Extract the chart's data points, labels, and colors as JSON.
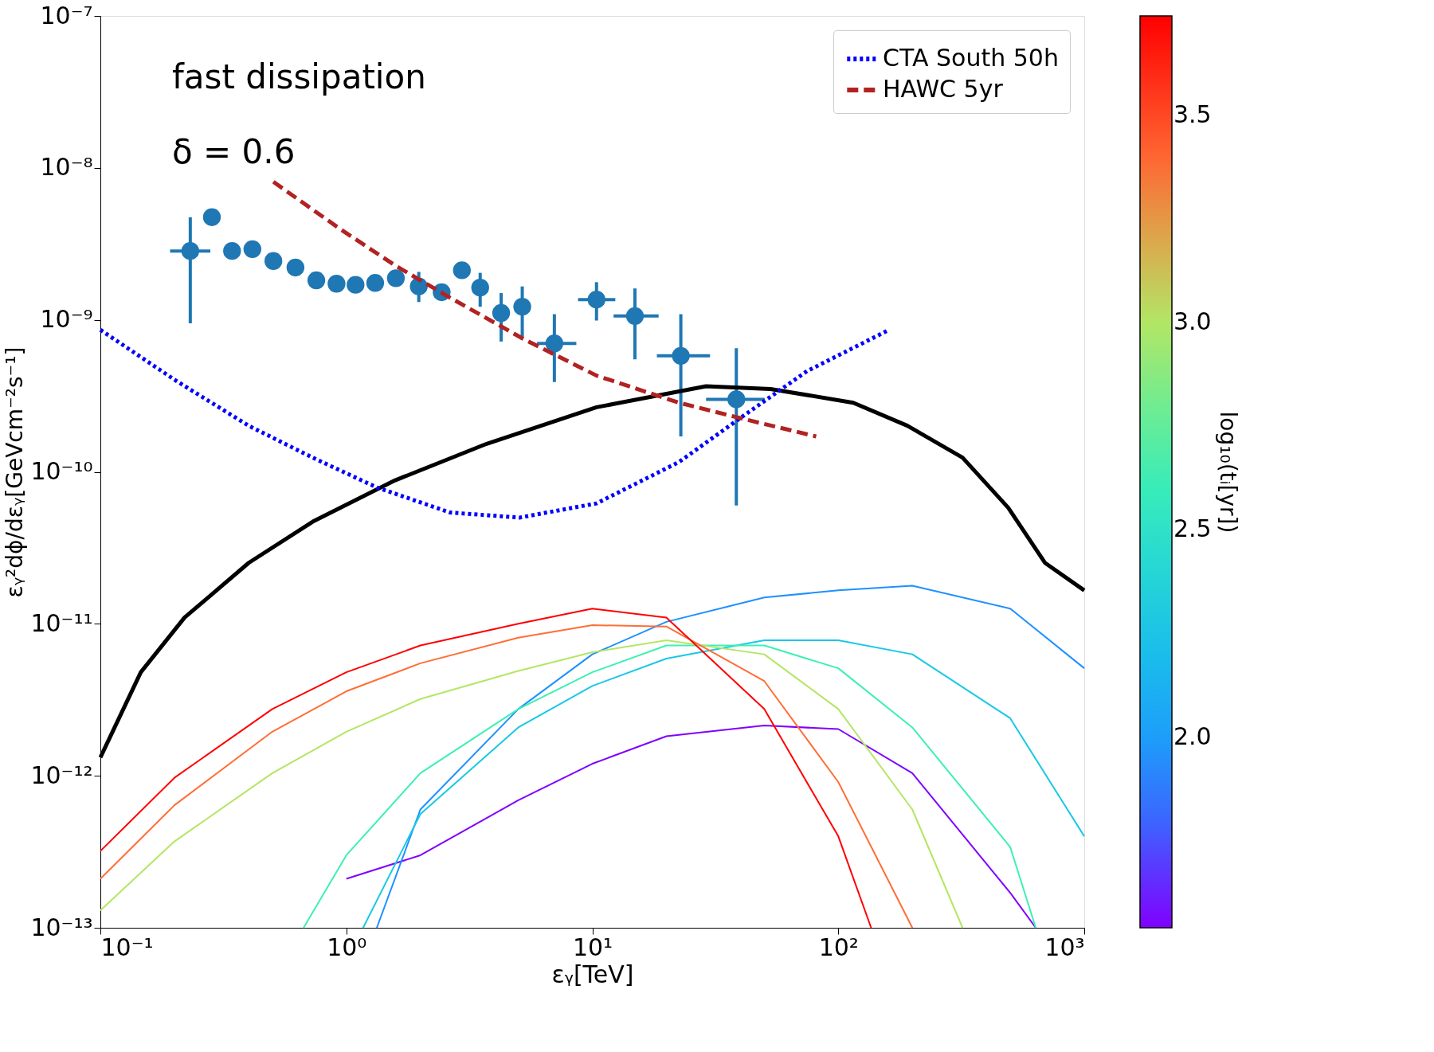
{
  "chart_data": {
    "type": "line",
    "xlabel": "εᵧ[TeV]",
    "ylabel": "εᵧ²dϕ/dεᵧ[GeVcm⁻²s⁻¹]",
    "clabel": "log₁₀(tᵢ[yr])",
    "log": "xy",
    "legend": "top right",
    "grid": false,
    "xlim": [
      0.1,
      1000
    ],
    "ylim": [
      1e-13,
      1e-07
    ],
    "xticks": [
      {
        "value": 0.1,
        "label": "10⁻¹"
      },
      {
        "value": 1,
        "label": "10⁰"
      },
      {
        "value": 10,
        "label": "10¹"
      },
      {
        "value": 100,
        "label": "10²"
      },
      {
        "value": 1000,
        "label": "10³"
      }
    ],
    "yticks": [
      {
        "value": 1e-13,
        "label": "10⁻¹³"
      },
      {
        "value": 1e-12,
        "label": "10⁻¹²"
      },
      {
        "value": 1e-11,
        "label": "10⁻¹¹"
      },
      {
        "value": 1e-10,
        "label": "10⁻¹⁰"
      },
      {
        "value": 1e-09,
        "label": "10⁻⁹"
      },
      {
        "value": 1e-08,
        "label": "10⁻⁸"
      },
      {
        "value": 1e-07,
        "label": "10⁻⁷"
      }
    ],
    "clim": [
      1.54,
      3.74
    ],
    "cticks": [
      {
        "value": 2,
        "label": "2.0"
      },
      {
        "value": 2.5,
        "label": "2.5"
      },
      {
        "value": 3,
        "label": "3.0"
      },
      {
        "value": 3.5,
        "label": "3.5"
      }
    ],
    "annotations": [
      "fast dissipation",
      "δ = 0.6"
    ],
    "series": [
      {
        "type": "scatter",
        "marker": "circle",
        "color": "#1f77b4",
        "x": [
          0.232,
          0.284,
          0.343,
          0.415,
          0.505,
          0.621,
          0.755,
          0.912,
          1.09,
          1.31,
          1.59,
          1.97,
          2.44,
          2.95,
          3.5,
          4.26,
          5.19,
          7.01,
          10.4,
          14.9,
          22.9,
          38.5
        ],
        "values": [
          2.84e-09,
          4.74e-09,
          2.84e-09,
          2.92e-09,
          2.44e-09,
          2.21e-09,
          1.82e-09,
          1.73e-09,
          1.7e-09,
          1.75e-09,
          1.88e-09,
          1.66e-09,
          1.52e-09,
          2.12e-09,
          1.63e-09,
          1.11e-09,
          1.22e-09,
          7e-10,
          1.36e-09,
          1.06e-09,
          5.8e-10,
          3e-10
        ],
        "errors": [
          [
            9.5e-10,
            4.74e-09
          ],
          null,
          null,
          null,
          null,
          null,
          null,
          null,
          null,
          null,
          null,
          [
            1.31e-09,
            2.07e-09
          ],
          null,
          null,
          [
            1.22e-09,
            2.04e-09
          ],
          [
            7.2e-10,
            1.5e-09
          ],
          [
            7.7e-10,
            1.66e-09
          ],
          [
            3.9e-10,
            1.09e-09
          ],
          [
            9.9e-10,
            1.77e-09
          ],
          [
            5.5e-10,
            1.61e-09
          ],
          [
            1.71e-10,
            1.09e-09
          ],
          [
            6e-11,
            6.5e-10
          ]
        ],
        "xerrors": [
          [
            0.192,
            0.28
          ],
          null,
          null,
          null,
          null,
          null,
          null,
          null,
          null,
          null,
          null,
          null,
          null,
          null,
          null,
          null,
          null,
          [
            5.96,
            8.61
          ],
          [
            8.75,
            12.4
          ],
          [
            12.2,
            18.6
          ],
          [
            18.3,
            30.1
          ],
          [
            29.0,
            50.2
          ]
        ]
      },
      {
        "color": "#000000",
        "x": [
          0.1,
          0.146,
          0.22,
          0.401,
          0.73,
          1.58,
          3.72,
          10.4,
          29.0,
          53,
          115,
          191,
          320,
          491,
          692,
          1000
        ],
        "values": [
          1.32e-12,
          4.8e-12,
          1.1e-11,
          2.52e-11,
          4.7e-11,
          8.8e-11,
          1.53e-10,
          2.66e-10,
          3.66e-10,
          3.51e-10,
          2.85e-10,
          2.01e-10,
          1.24e-10,
          5.8e-11,
          2.52e-11,
          1.66e-11
        ]
      },
      {
        "type": "line",
        "name": "CTA South 50h",
        "color": "#0000ff",
        "line_style": "dotted",
        "x": [
          0.1,
          0.202,
          0.401,
          0.73,
          1.33,
          2.64,
          5.06,
          10.4,
          22.5,
          40.9,
          74.6,
          161
        ],
        "values": [
          8.6e-10,
          4e-10,
          2.01e-10,
          1.24e-10,
          7.9e-11,
          5.4e-11,
          5e-11,
          6.2e-11,
          1.16e-10,
          2.32e-10,
          4.6e-10,
          8.6e-10
        ]
      },
      {
        "type": "line",
        "name": "HAWC 5yr",
        "color": "#b22222",
        "line_style": "dashed",
        "x": [
          0.505,
          0.944,
          1.58,
          2.64,
          5.24,
          10.4,
          22.5,
          44.6,
          81.3
        ],
        "values": [
          8.1e-09,
          3.96e-09,
          2.28e-09,
          1.4e-09,
          7.5e-10,
          4.3e-10,
          2.85e-10,
          2.16e-10,
          1.71e-10
        ]
      },
      {
        "color": "#8000ff",
        "x": [
          1,
          2,
          5,
          10,
          20,
          50,
          100,
          200,
          500,
          635
        ],
        "values": [
          2.1e-13,
          3e-13,
          6.9e-13,
          1.2e-12,
          1.82e-12,
          2.14e-12,
          2.03e-12,
          1.04e-12,
          1.7e-13,
          1e-13
        ]
      },
      {
        "color": "#1e90ff",
        "x": [
          1.33,
          2,
          5,
          10,
          20,
          50,
          100,
          200,
          500,
          1000,
          1000
        ],
        "values": [
          1e-13,
          6e-13,
          2.75e-12,
          6.3e-12,
          1.03e-11,
          1.49e-11,
          1.66e-11,
          1.78e-11,
          1.26e-11,
          5.1e-12,
          5.1e-12
        ]
      },
      {
        "color": "#19c8e6",
        "x": [
          1.17,
          2,
          5,
          10,
          20,
          50,
          100,
          200,
          500,
          1000
        ],
        "values": [
          1e-13,
          5.6e-13,
          2.08e-12,
          3.9e-12,
          5.9e-12,
          7.8e-12,
          7.8e-12,
          6.3e-12,
          2.39e-12,
          4e-13
        ]
      },
      {
        "color": "#3cf0b4",
        "x": [
          0.67,
          1,
          2,
          5,
          10,
          20,
          50,
          100,
          200,
          500,
          635
        ],
        "values": [
          1e-13,
          3e-13,
          1.04e-12,
          2.75e-12,
          4.8e-12,
          7.2e-12,
          7.2e-12,
          5.1e-12,
          2.08e-12,
          3.4e-13,
          1e-13
        ]
      },
      {
        "color": "#b4e664",
        "x": [
          0.1,
          0.2,
          0.5,
          1,
          2,
          5,
          10,
          20,
          50,
          100,
          200,
          320
        ],
        "values": [
          1.3e-13,
          3.7e-13,
          1.04e-12,
          1.95e-12,
          3.2e-12,
          4.9e-12,
          6.5e-12,
          7.8e-12,
          6.3e-12,
          2.75e-12,
          6e-13,
          1e-13
        ]
      },
      {
        "color": "#ff6e36",
        "x": [
          0.1,
          0.2,
          0.5,
          1,
          2,
          5,
          10,
          20,
          50,
          100,
          200
        ],
        "values": [
          2.1e-13,
          6.4e-13,
          1.95e-12,
          3.6e-12,
          5.5e-12,
          8.1e-12,
          9.8e-12,
          9.6e-12,
          4.2e-12,
          9.1e-13,
          1e-13
        ]
      },
      {
        "color": "#ff0000",
        "x": [
          0.1,
          0.2,
          0.5,
          1,
          2,
          5,
          10,
          20,
          50,
          100,
          136
        ],
        "values": [
          3.2e-13,
          9.7e-13,
          2.75e-12,
          4.8e-12,
          7.2e-12,
          1e-11,
          1.26e-11,
          1.1e-11,
          2.75e-12,
          4e-13,
          1e-13
        ]
      }
    ]
  }
}
